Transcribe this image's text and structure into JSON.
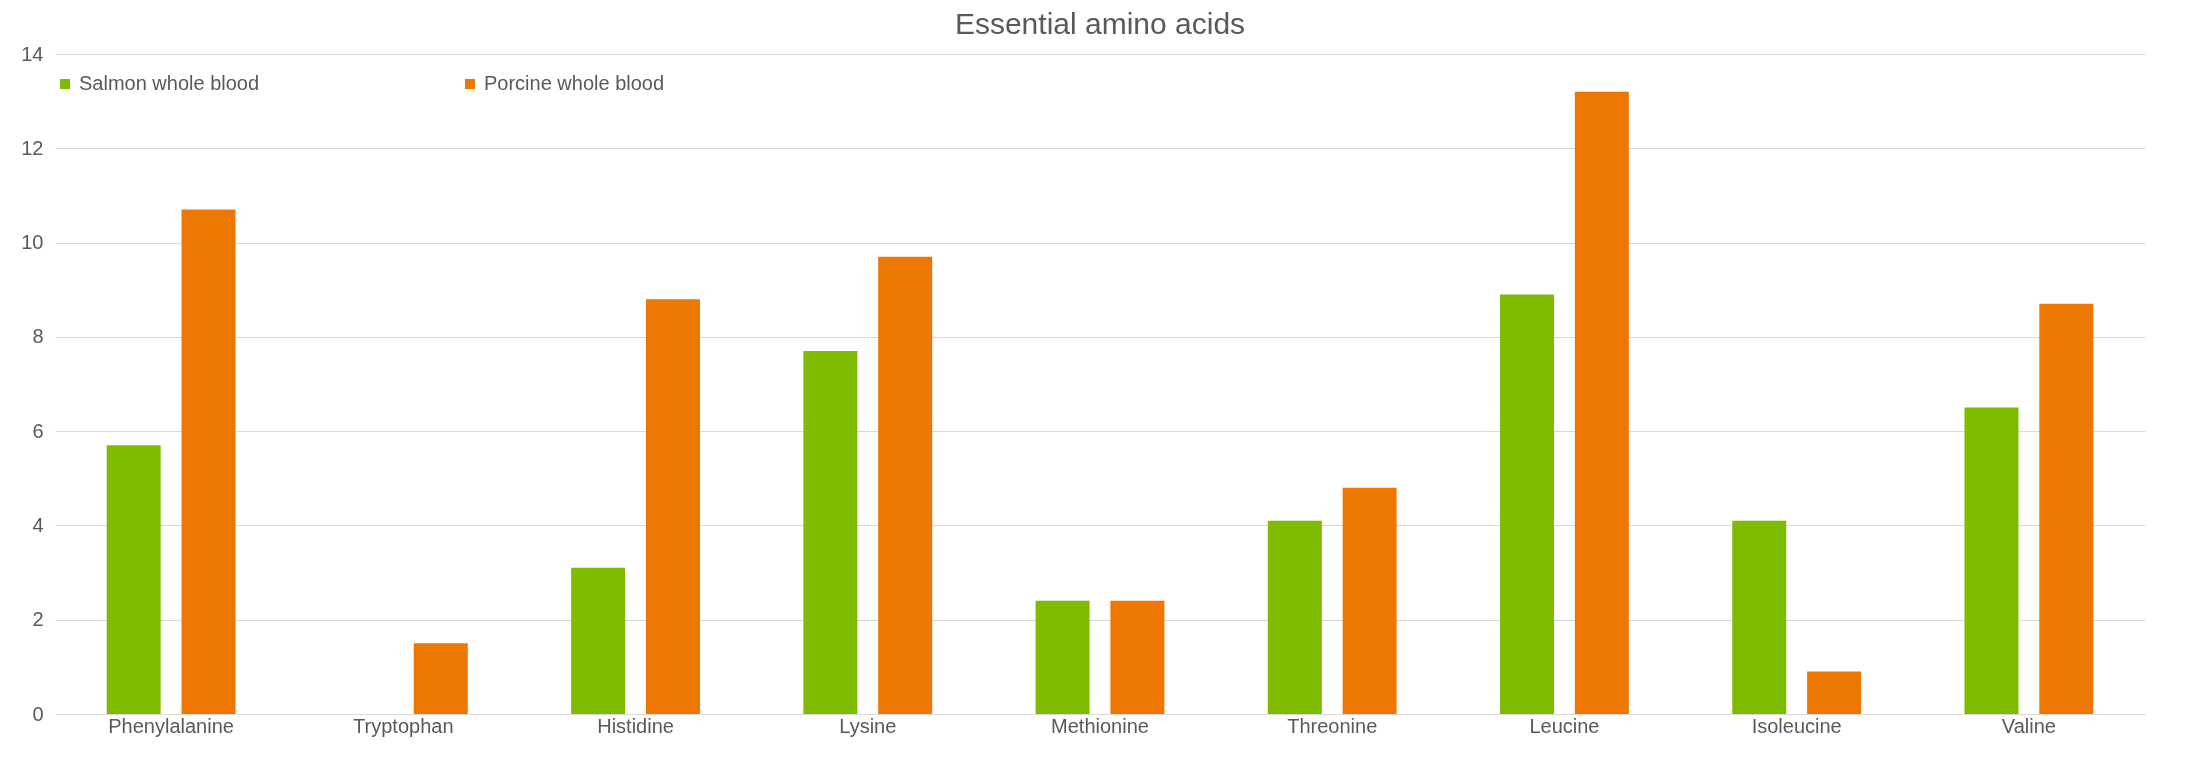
{
  "chart_data": {
    "type": "bar",
    "title": "Essential amino acids",
    "categories": [
      "Phenylalanine",
      "Tryptophan",
      "Histidine",
      "Lysine",
      "Methionine",
      "Threonine",
      "Leucine",
      "Isoleucine",
      "Valine"
    ],
    "series": [
      {
        "name": "Salmon whole blood",
        "color": "#7fbc00",
        "values": [
          5.7,
          0,
          3.1,
          7.7,
          2.4,
          4.1,
          8.9,
          4.1,
          6.5
        ]
      },
      {
        "name": "Porcine whole blood",
        "color": "#ed7700",
        "values": [
          10.7,
          1.5,
          8.8,
          9.7,
          2.4,
          4.8,
          13.2,
          0.9,
          8.7
        ]
      }
    ],
    "ylim": [
      0,
      14
    ],
    "yticks": [
      0,
      2,
      4,
      6,
      8,
      10,
      12,
      14
    ],
    "grid": "y",
    "legend": "top"
  }
}
